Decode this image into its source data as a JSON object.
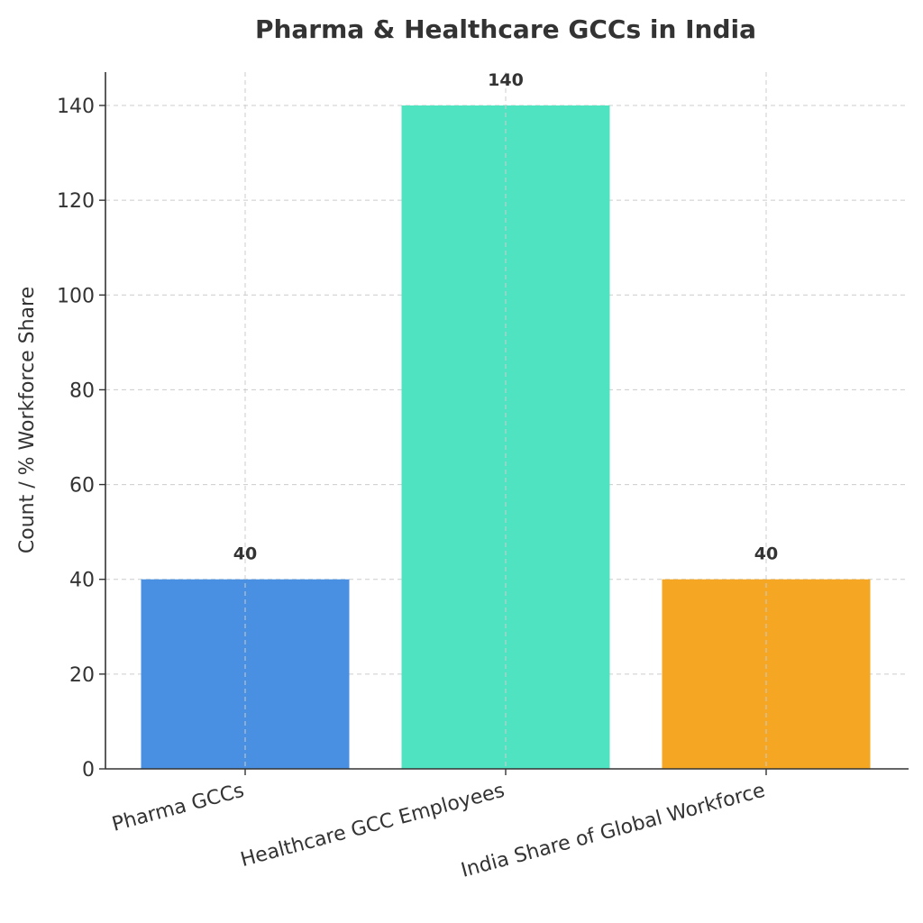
{
  "chart_data": {
    "type": "bar",
    "title": "Pharma & Healthcare GCCs in India",
    "xlabel": "",
    "ylabel": "Count / % Workforce Share",
    "categories": [
      "Pharma GCCs",
      "Healthcare GCC Employees",
      "India Share of Global Workforce"
    ],
    "values": [
      40,
      140,
      40
    ],
    "data_labels": [
      "40",
      "140",
      "40"
    ],
    "colors": [
      "#4a90e2",
      "#50e3c2",
      "#f5a623"
    ],
    "ylim": [
      0,
      147
    ],
    "yticks": [
      0,
      20,
      40,
      60,
      80,
      100,
      120,
      140
    ],
    "grid": true,
    "legend": "none"
  }
}
